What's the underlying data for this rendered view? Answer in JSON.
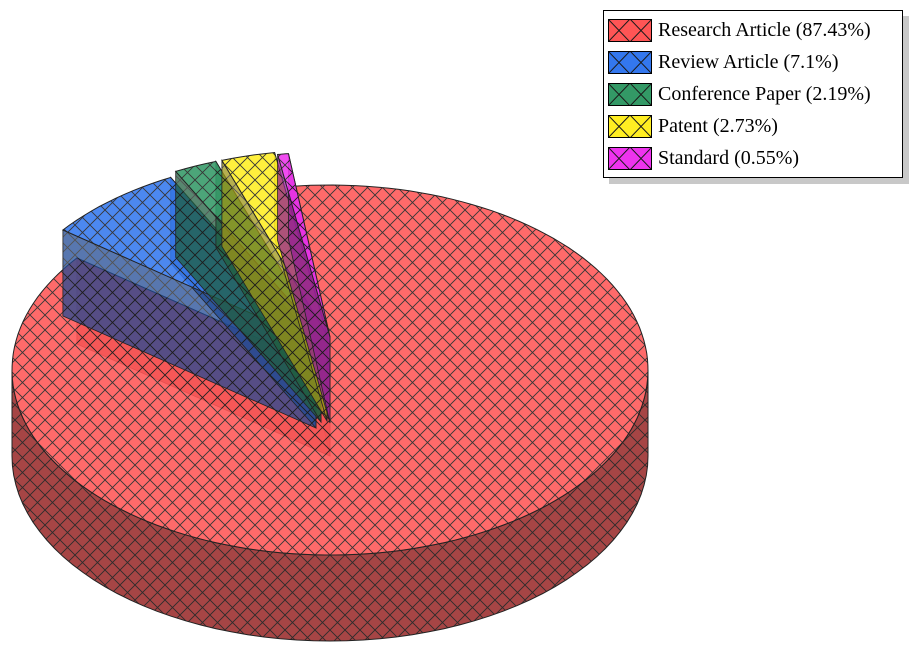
{
  "chart_data": {
    "type": "pie",
    "style": "3d-exploded",
    "categories": [
      "Research Article",
      "Review Article",
      "Conference Paper",
      "Patent",
      "Standard"
    ],
    "values": [
      87.43,
      7.1,
      2.19,
      2.73,
      0.55
    ],
    "legend_labels": [
      "Research Article (87.43%)",
      "Review Article (7.1%)",
      "Conference Paper (2.19%)",
      "Patent (2.73%)",
      "Standard (0.55%)"
    ],
    "colors": [
      "#ff5555",
      "#3377ee",
      "#339966",
      "#ffee22",
      "#ee33ee"
    ],
    "hatch": "crosshatch",
    "legend_position": "top-right",
    "title": ""
  }
}
